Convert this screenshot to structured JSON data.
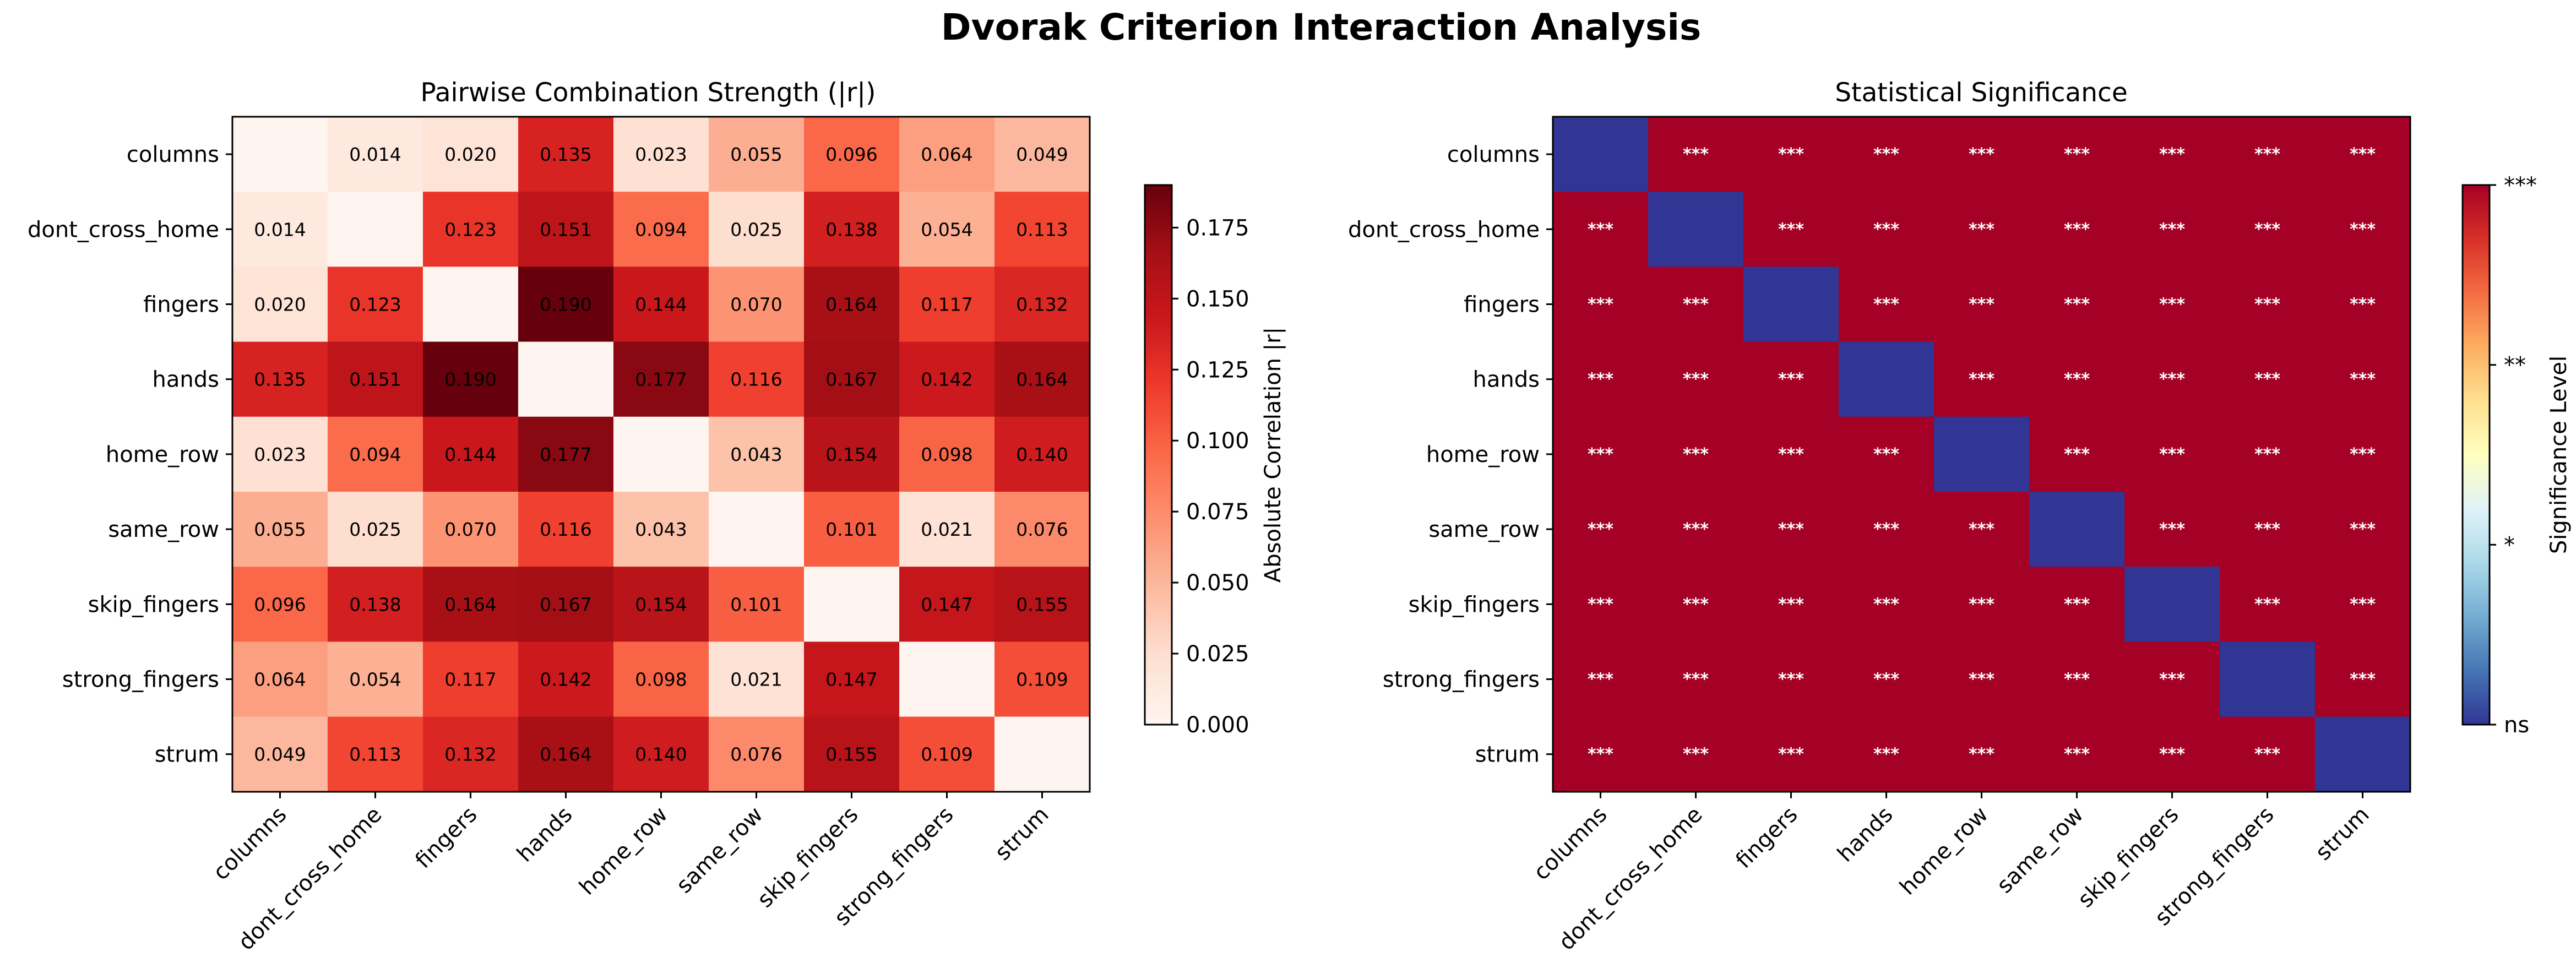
{
  "figure": {
    "title": "Dvorak Criterion Interaction Analysis"
  },
  "chart_data": [
    {
      "type": "heatmap",
      "title": "Pairwise Combination Strength (|r|)",
      "rows": [
        "columns",
        "dont_cross_home",
        "fingers",
        "hands",
        "home_row",
        "same_row",
        "skip_fingers",
        "strong_fingers",
        "strum"
      ],
      "columns": [
        "columns",
        "dont_cross_home",
        "fingers",
        "hands",
        "home_row",
        "same_row",
        "skip_fingers",
        "strong_fingers",
        "strum"
      ],
      "values": [
        [
          null,
          0.014,
          0.02,
          0.135,
          0.023,
          0.055,
          0.096,
          0.064,
          0.049
        ],
        [
          0.014,
          null,
          0.123,
          0.151,
          0.094,
          0.025,
          0.138,
          0.054,
          0.113
        ],
        [
          0.02,
          0.123,
          null,
          0.19,
          0.144,
          0.07,
          0.164,
          0.117,
          0.132
        ],
        [
          0.135,
          0.151,
          0.19,
          null,
          0.177,
          0.116,
          0.167,
          0.142,
          0.164
        ],
        [
          0.023,
          0.094,
          0.144,
          0.177,
          null,
          0.043,
          0.154,
          0.098,
          0.14
        ],
        [
          0.055,
          0.025,
          0.07,
          0.116,
          0.043,
          null,
          0.101,
          0.021,
          0.076
        ],
        [
          0.096,
          0.138,
          0.164,
          0.167,
          0.154,
          0.101,
          null,
          0.147,
          0.155
        ],
        [
          0.064,
          0.054,
          0.117,
          0.142,
          0.098,
          0.021,
          0.147,
          null,
          0.109
        ],
        [
          0.049,
          0.113,
          0.132,
          0.164,
          0.14,
          0.076,
          0.155,
          0.109,
          null
        ]
      ],
      "colormap": "Reds",
      "colorbar": {
        "label": "Absolute Correlation |r|",
        "range": [
          0,
          0.19
        ],
        "ticks": [
          "0.000",
          "0.025",
          "0.050",
          "0.075",
          "0.100",
          "0.125",
          "0.150",
          "0.175"
        ]
      }
    },
    {
      "type": "heatmap",
      "title": "Statistical Significance",
      "rows": [
        "columns",
        "dont_cross_home",
        "fingers",
        "hands",
        "home_row",
        "same_row",
        "skip_fingers",
        "strong_fingers",
        "strum"
      ],
      "columns": [
        "columns",
        "dont_cross_home",
        "fingers",
        "hands",
        "home_row",
        "same_row",
        "skip_fingers",
        "strong_fingers",
        "strum"
      ],
      "diagonal_level": "ns",
      "offdiagonal_level": "***",
      "cell_label": "***",
      "colormap": "RdYlBu_r",
      "colors": {
        "ns": "#313695",
        "***": "#a50026"
      },
      "colorbar": {
        "label": "Significance Level",
        "ticks": [
          "ns",
          "*",
          "**",
          "***"
        ]
      }
    }
  ]
}
